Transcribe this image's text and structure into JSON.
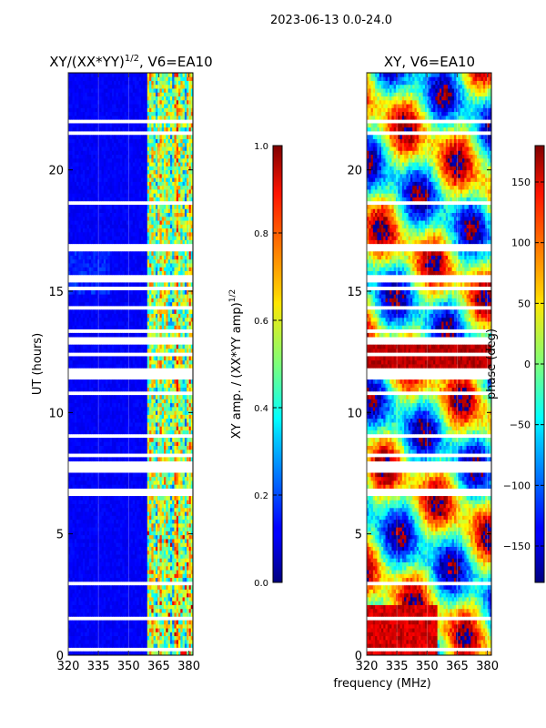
{
  "suptitle": "2023-06-13 0.0-24.0",
  "chart_data": [
    {
      "type": "heatmap",
      "title_parts": [
        "XY/(XX*YY)",
        "1/2",
        ", V6=EA10"
      ],
      "xlabel": "",
      "ylabel": "UT (hours)",
      "xlim": [
        320,
        382
      ],
      "ylim": [
        0,
        24
      ],
      "xticks": [
        320,
        335,
        350,
        365,
        380
      ],
      "yticks": [
        0,
        5,
        10,
        15,
        20
      ],
      "value": "normalized XY amplitude",
      "colorbar": {
        "label_parts": [
          "XY amp. / (XX*YY amp)",
          "1/2"
        ],
        "range": [
          0.0,
          1.0
        ],
        "ticks": [
          "0.0",
          "0.2",
          "0.4",
          "0.6",
          "0.8",
          "1.0"
        ]
      }
    },
    {
      "type": "heatmap",
      "title": "XY, V6=EA10",
      "xlabel": "frequency (MHz)",
      "ylabel": "",
      "xlim": [
        320,
        382
      ],
      "ylim": [
        0,
        24
      ],
      "xticks": [
        320,
        335,
        350,
        365,
        380
      ],
      "yticks": [
        0,
        5,
        10,
        15,
        20
      ],
      "value": "XY phase",
      "colorbar": {
        "label": "phase (deg)",
        "range": [
          -180,
          180
        ],
        "ticks": [
          "150",
          "100",
          "50",
          "0",
          "−50",
          "−100",
          "−150"
        ],
        "tick_values": [
          150,
          100,
          50,
          0,
          -50,
          -100,
          -150
        ]
      }
    }
  ]
}
